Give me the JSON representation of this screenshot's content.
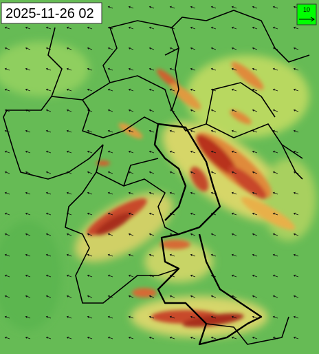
{
  "timestamp": "2025-11-26 02",
  "legend": {
    "label": "10"
  }
}
